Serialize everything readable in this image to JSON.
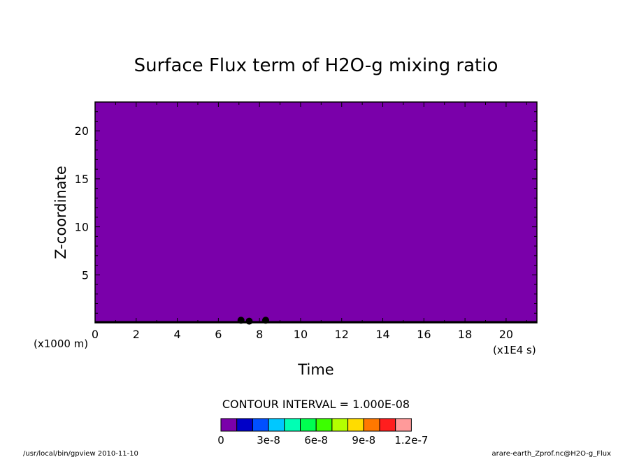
{
  "chart_data": {
    "type": "heatmap",
    "title": "Surface Flux term of H2O-g mixing ratio",
    "xlabel": "Time",
    "ylabel": "Z-coordinate",
    "x_unit": "(x1E4 s)",
    "y_unit": "(x1000 m)",
    "xlim": [
      0,
      21.5
    ],
    "ylim": [
      0,
      23
    ],
    "x_ticks": [
      "0",
      "2",
      "4",
      "6",
      "8",
      "10",
      "12",
      "14",
      "16",
      "18",
      "20"
    ],
    "x_tick_values": [
      0,
      2,
      4,
      6,
      8,
      10,
      12,
      14,
      16,
      18,
      20
    ],
    "y_ticks": [
      "5",
      "10",
      "15",
      "20"
    ],
    "y_tick_values": [
      5,
      10,
      15,
      20
    ],
    "field_fill_color": "#7a00aa",
    "contour_interval_label": "CONTOUR INTERVAL = 1.000E-08",
    "colorbar": {
      "colors": [
        "#7a00aa",
        "#0000c8",
        "#0050ff",
        "#00c8ff",
        "#00ffb4",
        "#00ff50",
        "#3cff00",
        "#b4ff00",
        "#ffdc00",
        "#ff7800",
        "#ff1e1e",
        "#ff9a9a"
      ],
      "labels": [
        "0",
        "3e-8",
        "6e-8",
        "9e-8",
        "1.2e-7"
      ],
      "label_values": [
        0,
        3e-08,
        6e-08,
        9e-08,
        1.2e-07
      ],
      "min": 0,
      "max": 1.2e-07
    },
    "surface_features": [
      {
        "x": 7.1,
        "y": 0.2
      },
      {
        "x": 7.5,
        "y": 0.1
      },
      {
        "x": 8.3,
        "y": 0.2
      }
    ]
  },
  "footer": {
    "left": "/usr/local/bin/gpview  2010-11-10",
    "right": "arare-earth_Zprof.nc@H2O-g_Flux"
  }
}
